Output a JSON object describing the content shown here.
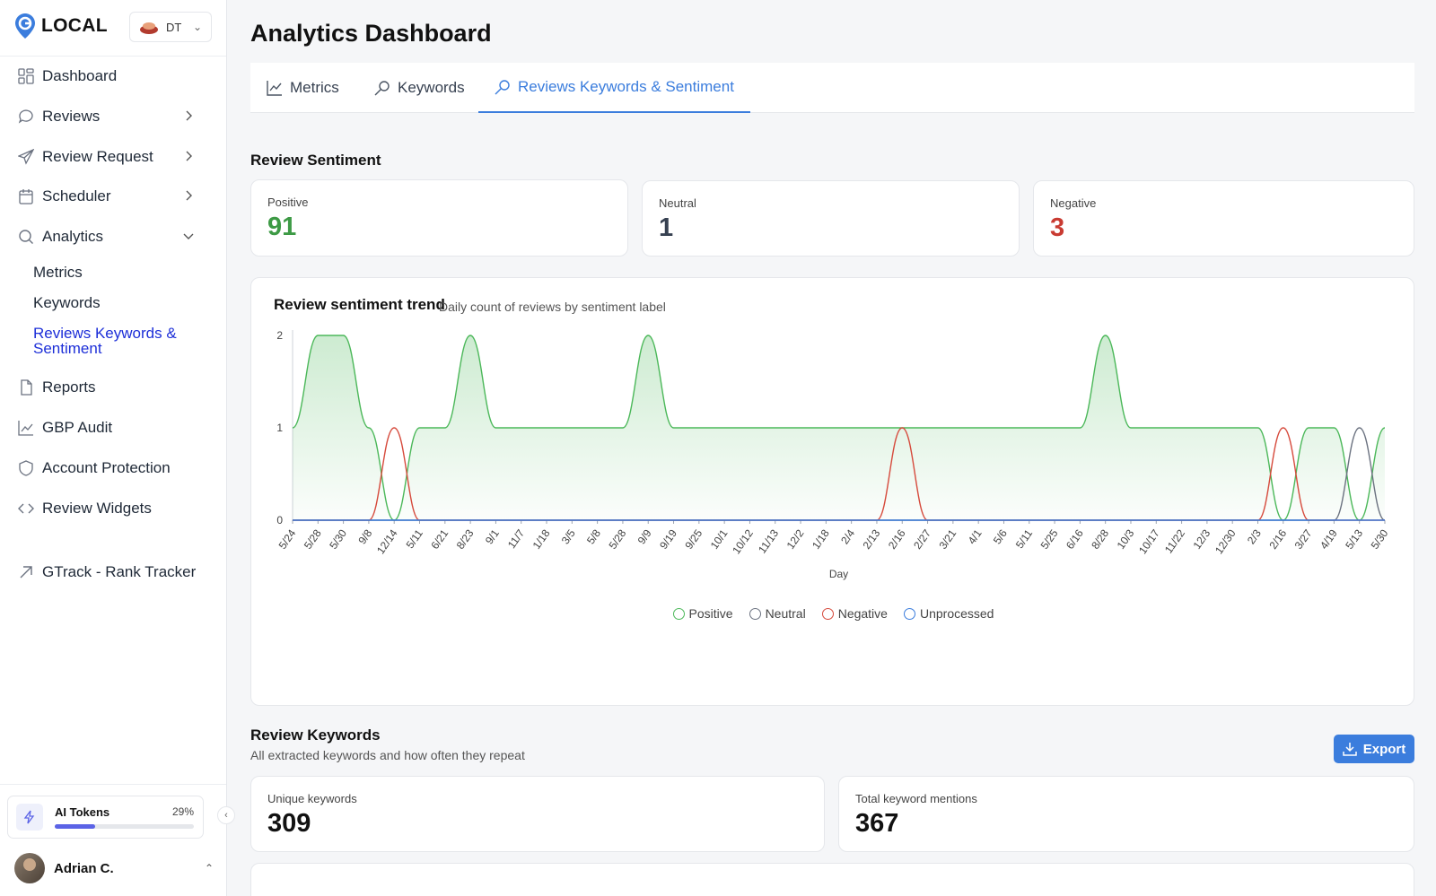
{
  "app": {
    "logo_text": "LOCAL",
    "location_code": "DT"
  },
  "sidebar": {
    "items": [
      {
        "label": "Dashboard",
        "icon": "dashboard-icon"
      },
      {
        "label": "Reviews",
        "icon": "reviews-icon",
        "has_arrow": true
      },
      {
        "label": "Review Request",
        "icon": "send-icon",
        "has_arrow": true
      },
      {
        "label": "Scheduler",
        "icon": "calendar-icon",
        "has_arrow": true
      },
      {
        "label": "Analytics",
        "icon": "search-icon",
        "expanded": true
      },
      {
        "label": "Reports",
        "icon": "file-icon"
      },
      {
        "label": "GBP Audit",
        "icon": "chart-icon"
      },
      {
        "label": "Account Protection",
        "icon": "shield-icon"
      },
      {
        "label": "Review Widgets",
        "icon": "code-icon"
      },
      {
        "label": "GTrack - Rank Tracker",
        "icon": "arrow-up-right-icon"
      }
    ],
    "analytics_sub": [
      "Metrics",
      "Keywords",
      "Reviews Keywords & Sentiment"
    ],
    "active_sub": "Reviews Keywords & Sentiment",
    "tokens": {
      "label": "AI Tokens",
      "percent_text": "29%",
      "fraction": 0.29
    },
    "user": {
      "name": "Adrian C."
    }
  },
  "main": {
    "title": "Analytics Dashboard",
    "tabs": [
      {
        "label": "Metrics"
      },
      {
        "label": "Keywords"
      },
      {
        "label": "Reviews Keywords & Sentiment",
        "active": true
      }
    ],
    "sentiment": {
      "title": "Review Sentiment",
      "positive": {
        "label": "Positive",
        "value": "91",
        "color": "#3d9a45"
      },
      "neutral": {
        "label": "Neutral",
        "value": "1",
        "color": "#374151"
      },
      "negative": {
        "label": "Negative",
        "value": "3",
        "color": "#c93b32"
      }
    },
    "trend": {
      "title": "Review sentiment trend",
      "subtitle": "Daily count of reviews by sentiment label"
    },
    "keywords": {
      "title": "Review Keywords",
      "subtitle": "All extracted keywords and how often they repeat",
      "export_label": "Export",
      "unique_label": "Unique keywords",
      "unique_value": "309",
      "total_label": "Total keyword mentions",
      "total_value": "367"
    }
  },
  "chart_data": {
    "type": "line",
    "title": "Review sentiment trend",
    "subtitle": "Daily count of reviews by sentiment label",
    "xlabel": "Day",
    "ylabel": "",
    "ylim": [
      0,
      2
    ],
    "yticks": [
      0,
      1,
      2
    ],
    "grid": false,
    "legend_position": "bottom",
    "categories": [
      "5/24",
      "5/28",
      "5/30",
      "9/8",
      "12/14",
      "5/11",
      "6/21",
      "8/23",
      "9/1",
      "11/7",
      "1/18",
      "3/5",
      "5/8",
      "5/28",
      "9/9",
      "9/19",
      "9/25",
      "10/1",
      "10/12",
      "11/13",
      "12/2",
      "1/18",
      "2/4",
      "2/13",
      "2/16",
      "2/27",
      "3/21",
      "4/1",
      "5/6",
      "5/11",
      "5/25",
      "6/16",
      "8/28",
      "10/3",
      "10/17",
      "11/22",
      "12/3",
      "12/30",
      "2/3",
      "2/16",
      "3/27",
      "4/19",
      "5/13",
      "5/30"
    ],
    "series": [
      {
        "name": "Positive",
        "color": "#4cb85a",
        "values": [
          1,
          2,
          2,
          1,
          0,
          1,
          1,
          2,
          1,
          1,
          1,
          1,
          1,
          1,
          2,
          1,
          1,
          1,
          1,
          1,
          1,
          1,
          1,
          1,
          1,
          1,
          1,
          1,
          1,
          1,
          1,
          1,
          2,
          1,
          1,
          1,
          1,
          1,
          1,
          0,
          1,
          1,
          0,
          1
        ]
      },
      {
        "name": "Neutral",
        "color": "#6b7280",
        "values": [
          0,
          0,
          0,
          0,
          0,
          0,
          0,
          0,
          0,
          0,
          0,
          0,
          0,
          0,
          0,
          0,
          0,
          0,
          0,
          0,
          0,
          0,
          0,
          0,
          0,
          0,
          0,
          0,
          0,
          0,
          0,
          0,
          0,
          0,
          0,
          0,
          0,
          0,
          0,
          0,
          0,
          0,
          1,
          0
        ]
      },
      {
        "name": "Negative",
        "color": "#d64a3c",
        "values": [
          0,
          0,
          0,
          0,
          1,
          0,
          0,
          0,
          0,
          0,
          0,
          0,
          0,
          0,
          0,
          0,
          0,
          0,
          0,
          0,
          0,
          0,
          0,
          0,
          1,
          0,
          0,
          0,
          0,
          0,
          0,
          0,
          0,
          0,
          0,
          0,
          0,
          0,
          0,
          1,
          0,
          0,
          0,
          0
        ]
      },
      {
        "name": "Unprocessed",
        "color": "#3b7ddd",
        "values": [
          0,
          0,
          0,
          0,
          0,
          0,
          0,
          0,
          0,
          0,
          0,
          0,
          0,
          0,
          0,
          0,
          0,
          0,
          0,
          0,
          0,
          0,
          0,
          0,
          0,
          0,
          0,
          0,
          0,
          0,
          0,
          0,
          0,
          0,
          0,
          0,
          0,
          0,
          0,
          0,
          0,
          0,
          0,
          0
        ]
      }
    ]
  }
}
